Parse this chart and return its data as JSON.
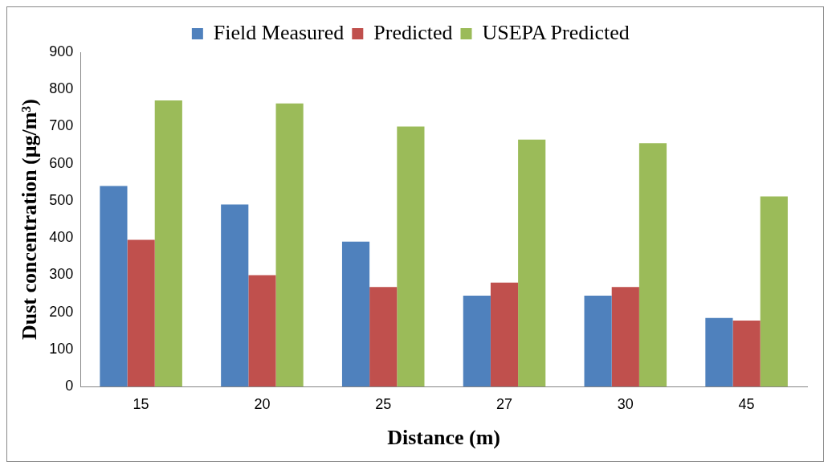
{
  "chart_data": {
    "type": "bar",
    "xlabel": "Distance (m)",
    "ylabel": "Dust concentration (μg/m³)",
    "categories": [
      "15",
      "20",
      "25",
      "27",
      "30",
      "45"
    ],
    "series": [
      {
        "name": "Field Measured",
        "color": "#4f81bd",
        "values": [
          540,
          490,
          390,
          245,
          245,
          185
        ]
      },
      {
        "name": "Predicted",
        "color": "#c0504d",
        "values": [
          395,
          300,
          268,
          280,
          268,
          178
        ]
      },
      {
        "name": "USEPA Predicted",
        "color": "#9bbb59",
        "values": [
          770,
          762,
          700,
          665,
          655,
          512
        ]
      }
    ],
    "ylim": [
      0,
      900
    ],
    "yticks": [
      0,
      100,
      200,
      300,
      400,
      500,
      600,
      700,
      800,
      900
    ],
    "grid": false,
    "legend": "top"
  }
}
